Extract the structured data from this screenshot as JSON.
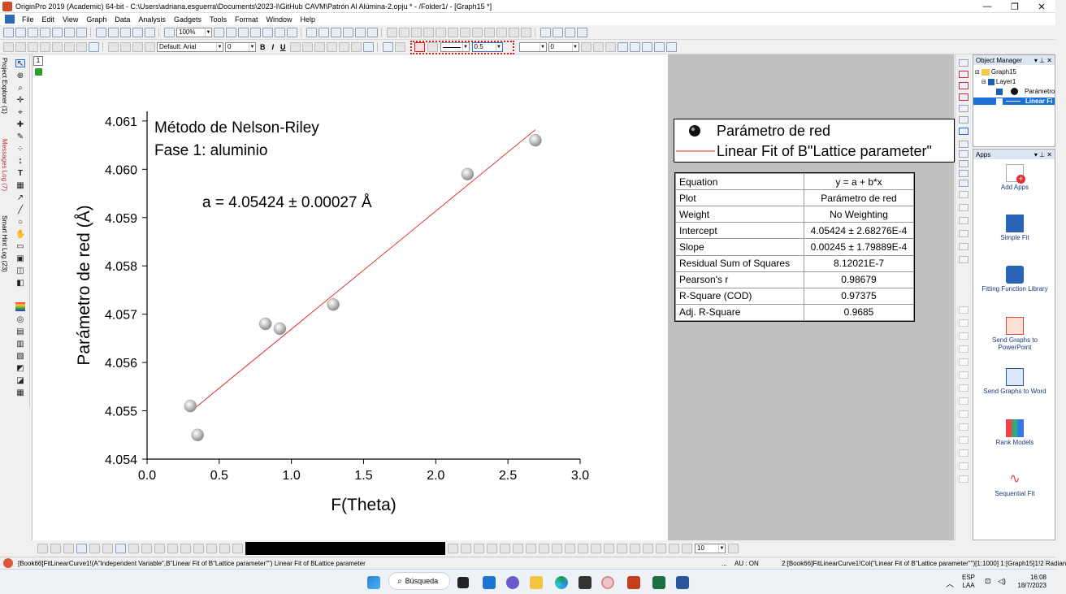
{
  "window": {
    "title": "OriginPro 2019 (Academic) 64-bit - C:\\Users\\adriana.esguerra\\Documents\\2023-I\\GitHub CAVM\\Patrón Al Alúmina-2.opju * - /Folder1/ - [Graph15 *]",
    "minimize": "—",
    "restore": "❐",
    "close": "✕"
  },
  "menu": {
    "items": [
      "File",
      "Edit",
      "View",
      "Graph",
      "Data",
      "Analysis",
      "Gadgets",
      "Tools",
      "Format",
      "Window",
      "Help"
    ]
  },
  "toolbar1": {
    "zoom_value": "100%"
  },
  "toolbar2": {
    "font_name": "Default: Arial",
    "font_size": "0",
    "bold": "B",
    "italic": "I",
    "underline": "U",
    "line_width": "0.5",
    "pattern_value": "0"
  },
  "left_tabs": {
    "project_explorer": "Project Explorer (1)",
    "messages_log": "Messages Log (7)",
    "smart_hint_log": "Smart Hint Log (23)"
  },
  "layer_number": "1",
  "graph": {
    "annotation_line1": "Método de Nelson-Riley",
    "annotation_line2": "Fase 1: aluminio",
    "result_text": "a = 4.05424 ± 0.00027 Å",
    "point_color": "#b0b0b0",
    "fit_color": "#e02020"
  },
  "chart_data": {
    "type": "scatter",
    "title": "",
    "xlabel": "F(Theta)",
    "ylabel": "Parámetro de red (Å)",
    "xlim": [
      0.0,
      3.0
    ],
    "ylim": [
      4.054,
      4.0612
    ],
    "x_ticks": [
      "0.0",
      "0.5",
      "1.0",
      "1.5",
      "2.0",
      "2.5",
      "3.0"
    ],
    "y_ticks": [
      "4.054",
      "4.055",
      "4.056",
      "4.057",
      "4.058",
      "4.059",
      "4.060",
      "4.061"
    ],
    "x_tick_values": [
      0.0,
      0.5,
      1.0,
      1.5,
      2.0,
      2.5,
      3.0
    ],
    "y_tick_values": [
      4.054,
      4.055,
      4.056,
      4.057,
      4.058,
      4.059,
      4.06,
      4.061
    ],
    "series": [
      {
        "name": "Parámetro de red",
        "kind": "scatter",
        "x": [
          0.3,
          0.35,
          0.82,
          0.92,
          1.29,
          2.22,
          2.69
        ],
        "y": [
          4.0551,
          4.0545,
          4.0568,
          4.0567,
          4.0572,
          4.0599,
          4.0606
        ]
      },
      {
        "name": "Linear Fit of B\"Lattice parameter\"",
        "kind": "line",
        "x": [
          0.3,
          2.69
        ],
        "y": [
          4.05498,
          4.06082
        ]
      }
    ],
    "legend_position": "top-right"
  },
  "legend": {
    "entry1": "Parámetro de red",
    "entry2": "Linear Fit of B\"Lattice parameter\""
  },
  "stats_table": {
    "rows": [
      {
        "label": "Equation",
        "value": "y = a + b*x"
      },
      {
        "label": "Plot",
        "value": "Parámetro de red"
      },
      {
        "label": "Weight",
        "value": "No Weighting"
      },
      {
        "label": "Intercept",
        "value": "4.05424 ± 2.68276E-4"
      },
      {
        "label": "Slope",
        "value": "0.00245 ± 1.79889E-4"
      },
      {
        "label": "Residual Sum of Squares",
        "value": "8.12021E-7"
      },
      {
        "label": "Pearson's r",
        "value": "0.98679"
      },
      {
        "label": "R-Square (COD)",
        "value": "0.97375"
      },
      {
        "label": "Adj. R-Square",
        "value": "0.9685"
      }
    ]
  },
  "object_manager": {
    "title": "Object Manager",
    "graph": "Graph15",
    "layer": "Layer1",
    "item1": "Parámetro",
    "item2": "Linear Fi"
  },
  "apps_panel": {
    "title": "Apps",
    "items": [
      "Add Apps",
      "Simple Fit",
      "Fitting Function Library",
      "Send Graphs to PowerPoint",
      "Send Graphs to Word",
      "Rank Models",
      "Sequential Fit"
    ]
  },
  "bottom_toolbar": {
    "size_value": "10"
  },
  "status": {
    "left_text": "[Book66]FitLinearCurve1!(A\"Independent Variable\",B\"Linear Fit of B\"Lattice parameter\"\") Linear Fit of BLattice parameter",
    "mid_text": "AU : ON",
    "right_text": "2:[Book66]FitLinearCurve1!Col(\"Linear Fit of B\"Lattice parameter\"\")[1:1000]  1:[Graph15]1!2  Radian"
  },
  "taskbar": {
    "search": "Búsqueda",
    "lang1": "ESP",
    "lang2": "LAA",
    "time": "16:08",
    "date": "18/7/2023"
  }
}
